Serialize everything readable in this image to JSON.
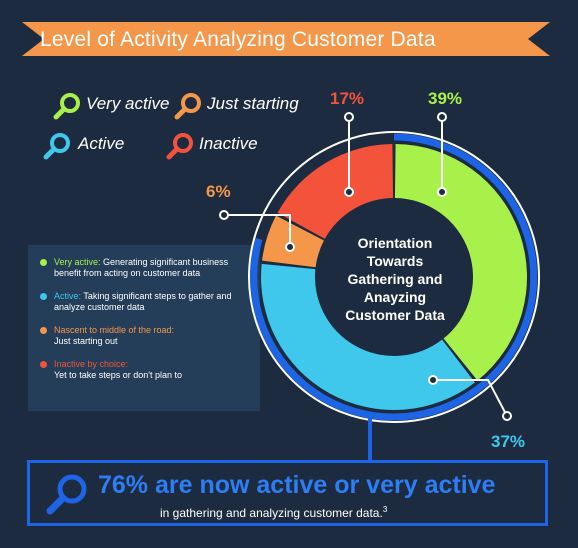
{
  "banner": {
    "title": "Level of Activity Analyzing Customer Data"
  },
  "legend": [
    {
      "label": "Very active",
      "color": "#a8f04a",
      "icon": "magnifier-icon"
    },
    {
      "label": "Just starting",
      "color": "#f5974a",
      "icon": "magnifier-icon"
    },
    {
      "label": "Active",
      "color": "#3fc8ec",
      "icon": "magnifier-icon"
    },
    {
      "label": "Inactive",
      "color": "#f3533a",
      "icon": "magnifier-icon"
    }
  ],
  "descriptions": [
    {
      "head": "Very active:",
      "text": " Generating significant business benefit from acting on customer data",
      "color": "#a8f04a"
    },
    {
      "head": "Active:",
      "text": " Taking significant steps to gather and analyze customer data",
      "color": "#3fc8ec"
    },
    {
      "head": "Nascent to middle of the road:",
      "text": "Just starting out",
      "color": "#f5974a"
    },
    {
      "head": "Inactive by choice:",
      "text": "Yet to take steps or don't plan to",
      "color": "#f3533a"
    }
  ],
  "chart_data": {
    "type": "pie",
    "title": "Orientation Towards Gathering and Anayzing Customer Data",
    "slices": [
      {
        "label": "Very active",
        "value": 39,
        "display": "39%",
        "color": "#a8f04a"
      },
      {
        "label": "Active",
        "value": 37,
        "display": "37%",
        "color": "#3fc8ec"
      },
      {
        "label": "Just starting",
        "value": 6,
        "display": "6%",
        "color": "#f5974a"
      },
      {
        "label": "Inactive",
        "value": 17,
        "display": "17%",
        "color": "#f3533a"
      }
    ]
  },
  "center": {
    "line1": "Orientation",
    "line2": "Towards",
    "line3": "Gathering and",
    "line4": "Anayzing",
    "line5": "Customer Data"
  },
  "callout": {
    "main": "76% are now active or very active",
    "sub": "in gathering and analyzing customer data.",
    "sup": "3",
    "icon": "magnifier-icon"
  },
  "colors": {
    "background": "#1c2b40",
    "banner": "#f5974a",
    "accent_blue": "#1e65e6"
  }
}
